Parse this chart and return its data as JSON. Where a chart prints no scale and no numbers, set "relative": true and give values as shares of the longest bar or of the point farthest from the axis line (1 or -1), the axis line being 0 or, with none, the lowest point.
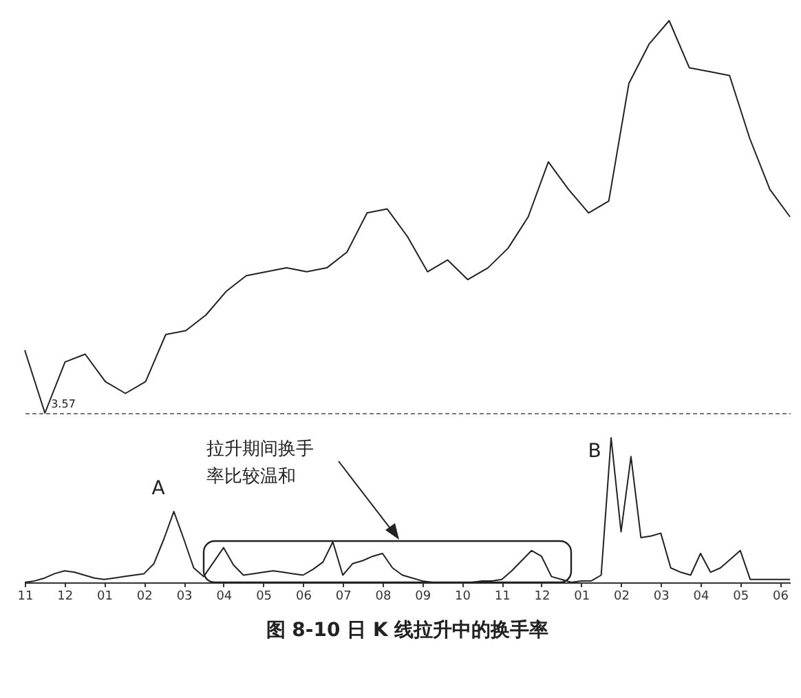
{
  "chart_data": [
    {
      "type": "line",
      "relative": true,
      "tick_labels": false,
      "color": "#222222",
      "categories": [
        null,
        null,
        null,
        null,
        null,
        null,
        null,
        null,
        null,
        null,
        null,
        null,
        null,
        null,
        null,
        null,
        null,
        null,
        null,
        null,
        null,
        null,
        null,
        null,
        null,
        null,
        null,
        null,
        null,
        null,
        null,
        null,
        null,
        null,
        null,
        null,
        null,
        null,
        null
      ],
      "values": [
        0.16,
        0,
        0.13,
        0.15,
        0.08,
        0.05,
        0.08,
        0.2,
        0.21,
        0.25,
        0.31,
        0.35,
        0.36,
        0.37,
        0.36,
        0.37,
        0.41,
        0.51,
        0.52,
        0.45,
        0.36,
        0.39,
        0.34,
        0.37,
        0.42,
        0.5,
        0.64,
        0.57,
        0.51,
        0.54,
        0.84,
        0.94,
        1,
        0.88,
        0.87,
        0.86,
        0.7,
        0.57,
        0.5
      ],
      "annotations": [
        "3.57"
      ]
    },
    {
      "type": "line",
      "relative": true,
      "tick_labels": "x",
      "color": "#222222",
      "title": "图 8-10 日 K 线拉升中的换手率",
      "categories": [
        "11",
        null,
        null,
        null,
        "12",
        null,
        null,
        null,
        "01",
        null,
        null,
        null,
        "02",
        null,
        null,
        null,
        "03",
        null,
        null,
        null,
        "04",
        null,
        null,
        null,
        "05",
        null,
        null,
        null,
        "06",
        null,
        null,
        null,
        "07",
        null,
        null,
        null,
        "08",
        null,
        null,
        null,
        "09",
        null,
        null,
        null,
        "10",
        null,
        null,
        null,
        "11",
        null,
        null,
        null,
        "12",
        null,
        null,
        null,
        "01",
        null,
        null,
        null,
        "02",
        null,
        null,
        null,
        "03",
        null,
        null,
        null,
        "04",
        null,
        null,
        null,
        "05",
        null,
        null,
        null,
        "06",
        null
      ],
      "values": [
        0,
        0.01,
        0.03,
        0.06,
        0.08,
        0.07,
        0.05,
        0.03,
        0.02,
        0.03,
        0.04,
        0.05,
        0.06,
        0.13,
        0.3,
        0.49,
        0.3,
        0.1,
        0.04,
        0.14,
        0.24,
        0.12,
        0.05,
        0.06,
        0.07,
        0.08,
        0.07,
        0.06,
        0.05,
        0.09,
        0.14,
        0.28,
        0.05,
        0.13,
        0.15,
        0.18,
        0.2,
        0.1,
        0.05,
        0.03,
        0.01,
        0,
        0,
        0,
        0,
        0,
        0.01,
        0.01,
        0.02,
        0.08,
        0.15,
        0.22,
        0.18,
        0.04,
        0.02,
        0,
        0.01,
        0.01,
        0.05,
        1,
        0.35,
        0.87,
        0.31,
        0.32,
        0.34,
        0.1,
        0.07,
        0.05,
        0.2,
        0.07,
        0.1,
        0.16,
        0.22,
        0.02,
        0.02,
        0.02,
        0.02,
        0.02
      ],
      "annotations": [
        "A",
        "B",
        "拉升期间换手率比较温和"
      ]
    }
  ]
}
